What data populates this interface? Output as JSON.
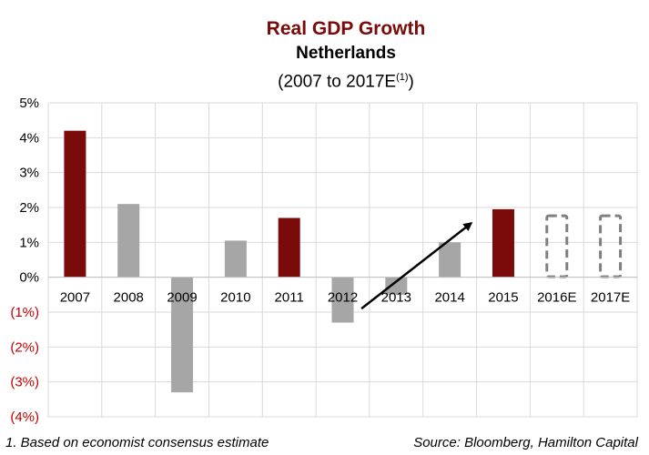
{
  "chart_data": {
    "type": "bar",
    "title": "Real GDP Growth",
    "subtitle": "Netherlands",
    "subtitle2": "(2007 to 2017E",
    "subtitle2_sup": "(1)",
    "subtitle2_close": ")",
    "categories": [
      "2007",
      "2008",
      "2009",
      "2010",
      "2011",
      "2012",
      "2013",
      "2014",
      "2015",
      "2016E",
      "2017E"
    ],
    "values": [
      4.2,
      2.1,
      -3.3,
      1.05,
      1.7,
      -1.3,
      -0.5,
      1.0,
      1.95,
      1.8,
      1.8
    ],
    "bar_styles": [
      "highlight",
      "normal",
      "normal",
      "normal",
      "highlight",
      "normal",
      "normal",
      "normal",
      "highlight",
      "estimate",
      "estimate"
    ],
    "ylim": [
      -4,
      5
    ],
    "yticks": [
      5,
      4,
      3,
      2,
      1,
      0,
      -1,
      -2,
      -3,
      -4
    ],
    "ytick_labels": [
      "5%",
      "4%",
      "3%",
      "2%",
      "1%",
      "0%",
      "(1%)",
      "(2%)",
      "(3%)",
      "(4%)"
    ],
    "grid": true,
    "annotation": "upward trend arrow from 2013 to 2015",
    "colors": {
      "highlight": "#7b0a0a",
      "normal": "#a6a6a6",
      "estimate_border": "#7f7f7f",
      "negative_label": "#c00000",
      "grid": "#d9d9d9"
    }
  },
  "footnote_left": "1. Based on economist consensus estimate",
  "footnote_right": "Source: Bloomberg, Hamilton Capital"
}
